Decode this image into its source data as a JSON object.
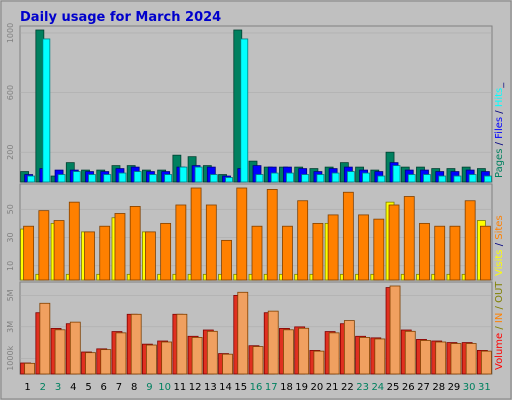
{
  "chart_data": [
    {
      "type": "bar",
      "title": "Daily usage for March 2024",
      "categories": [
        "1",
        "2",
        "3",
        "4",
        "5",
        "6",
        "7",
        "8",
        "9",
        "10",
        "11",
        "12",
        "13",
        "14",
        "15",
        "16",
        "17",
        "18",
        "19",
        "20",
        "21",
        "22",
        "23",
        "24",
        "25",
        "26",
        "27",
        "28",
        "29",
        "30",
        "31"
      ],
      "weekend_days": [
        "2",
        "3",
        "9",
        "10",
        "16",
        "17",
        "23",
        "24",
        "30",
        "31"
      ],
      "yticks": [
        200,
        600,
        1000
      ],
      "ylim": [
        0,
        1020
      ],
      "series": [
        {
          "name": "Pages",
          "color": "#00805f",
          "values": [
            70,
            1020,
            40,
            130,
            80,
            80,
            110,
            110,
            80,
            80,
            180,
            170,
            110,
            50,
            1020,
            140,
            100,
            100,
            100,
            90,
            100,
            130,
            100,
            80,
            200,
            100,
            100,
            90,
            90,
            100,
            90
          ]
        },
        {
          "name": "Files",
          "color": "#0000ff",
          "values": [
            50,
            90,
            80,
            80,
            70,
            70,
            90,
            100,
            70,
            70,
            100,
            110,
            100,
            40,
            90,
            110,
            100,
            100,
            90,
            70,
            90,
            100,
            80,
            70,
            130,
            80,
            80,
            70,
            70,
            80,
            70
          ]
        },
        {
          "name": "Hits",
          "color": "#00ffff",
          "values": [
            40,
            960,
            50,
            70,
            50,
            50,
            60,
            70,
            50,
            50,
            100,
            100,
            50,
            30,
            960,
            50,
            60,
            60,
            50,
            50,
            60,
            70,
            60,
            40,
            110,
            50,
            50,
            40,
            40,
            50,
            40
          ]
        }
      ],
      "legend": {
        "parts": [
          {
            "text": "Pages",
            "color": "#00805f"
          },
          {
            "text": " / ",
            "color": "#000080"
          },
          {
            "text": "Files",
            "color": "#0000ff"
          },
          {
            "text": " / ",
            "color": "#000080"
          },
          {
            "text": "Hits",
            "color": "#00ffff"
          },
          {
            "text": "_",
            "color": "#000080"
          }
        ]
      }
    },
    {
      "type": "bar",
      "categories": [
        "1",
        "2",
        "3",
        "4",
        "5",
        "6",
        "7",
        "8",
        "9",
        "10",
        "11",
        "12",
        "13",
        "14",
        "15",
        "16",
        "17",
        "18",
        "19",
        "20",
        "21",
        "22",
        "23",
        "24",
        "25",
        "26",
        "27",
        "28",
        "29",
        "30",
        "31"
      ],
      "yticks": [
        10,
        30,
        50
      ],
      "ylim": [
        0,
        65
      ],
      "series": [
        {
          "name": "Visits",
          "color": "#ffff00",
          "values": [
            36,
            4,
            40,
            4,
            34,
            4,
            44,
            4,
            34,
            4,
            4,
            4,
            4,
            4,
            4,
            4,
            4,
            4,
            4,
            4,
            40,
            4,
            4,
            4,
            55,
            4,
            4,
            4,
            4,
            4,
            42
          ]
        },
        {
          "name": "Sites",
          "color": "#ff8000",
          "values": [
            38,
            49,
            42,
            55,
            34,
            38,
            47,
            52,
            34,
            40,
            53,
            65,
            53,
            28,
            65,
            38,
            64,
            38,
            56,
            40,
            46,
            62,
            46,
            43,
            53,
            59,
            40,
            38,
            38,
            56,
            38
          ]
        }
      ],
      "legend": {
        "parts": [
          {
            "text": "Visits",
            "color": "#ffff00"
          },
          {
            "text": " / ",
            "color": "#000080"
          },
          {
            "text": "Sites",
            "color": "#ff8000"
          }
        ]
      }
    },
    {
      "type": "bar",
      "categories": [
        "1",
        "2",
        "3",
        "4",
        "5",
        "6",
        "7",
        "8",
        "9",
        "10",
        "11",
        "12",
        "13",
        "14",
        "15",
        "16",
        "17",
        "18",
        "19",
        "20",
        "21",
        "22",
        "23",
        "24",
        "25",
        "26",
        "27",
        "28",
        "29",
        "30",
        "31"
      ],
      "yticks": [
        1000,
        3000,
        5000
      ],
      "ytick_labels": [
        "1000k",
        "3M",
        "5M"
      ],
      "ylim": [
        0,
        5600
      ],
      "series": [
        {
          "name": "IN",
          "color": "#ff8000",
          "values": [
            0,
            4500,
            0,
            3300,
            0,
            0,
            0,
            3800,
            0,
            0,
            3800,
            0,
            0,
            0,
            5200,
            0,
            4000,
            0,
            0,
            0,
            0,
            3400,
            0,
            0,
            5600,
            0,
            0,
            0,
            0,
            0,
            0
          ]
        },
        {
          "name": "OUT",
          "color": "#808000",
          "values": [
            0,
            0,
            0,
            0,
            0,
            0,
            0,
            0,
            0,
            0,
            0,
            0,
            0,
            0,
            0,
            0,
            0,
            0,
            0,
            0,
            0,
            0,
            0,
            0,
            0,
            0,
            0,
            0,
            0,
            0,
            0
          ]
        },
        {
          "name": "Volume",
          "color": "#ff0000",
          "values": [
            700,
            3900,
            2900,
            3200,
            1400,
            1600,
            2700,
            3800,
            1900,
            2100,
            3800,
            2400,
            2800,
            1300,
            5000,
            1800,
            3900,
            2900,
            3000,
            1500,
            2700,
            3200,
            2400,
            2300,
            5500,
            2800,
            2200,
            2100,
            2000,
            2000,
            1500
          ]
        }
      ],
      "legend": {
        "parts": [
          {
            "text": "Volume",
            "color": "#ff0000"
          },
          {
            "text": " / ",
            "color": "#808000"
          },
          {
            "text": "IN",
            "color": "#ff8000"
          },
          {
            "text": " / ",
            "color": "#808000"
          },
          {
            "text": "OUT",
            "color": "#808000"
          }
        ]
      }
    }
  ]
}
